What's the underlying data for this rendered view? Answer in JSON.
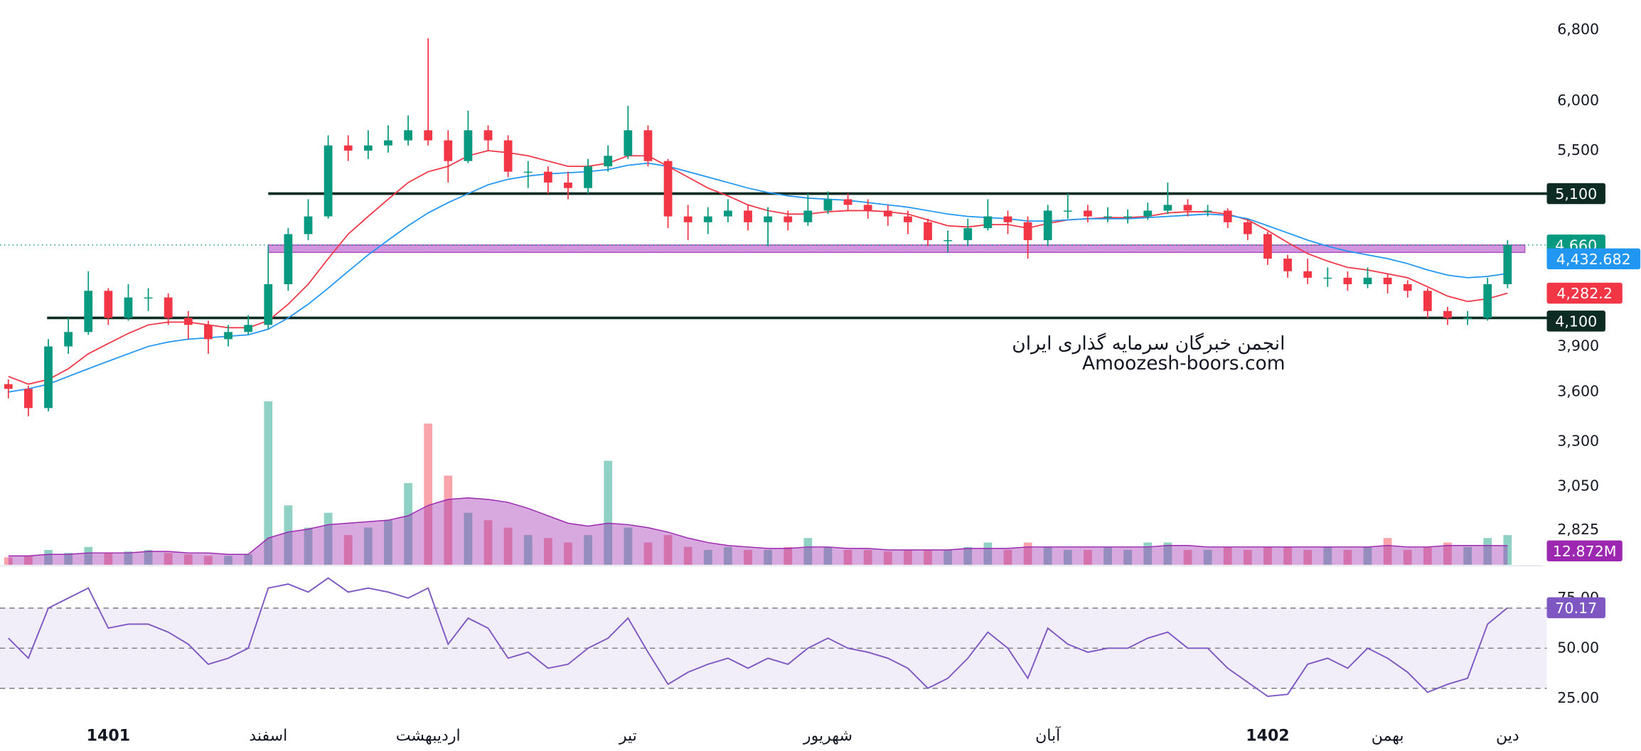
{
  "chart_data": {
    "type": "candlestick",
    "categories": [
      null,
      null,
      null,
      null,
      null,
      "1401",
      null,
      null,
      null,
      null,
      null,
      null,
      null,
      "اسفند",
      null,
      null,
      null,
      null,
      null,
      null,
      null,
      "اردیبهشت",
      null,
      null,
      null,
      null,
      null,
      null,
      null,
      null,
      null,
      "تیر",
      null,
      null,
      null,
      null,
      null,
      null,
      null,
      null,
      null,
      "شهریور",
      null,
      null,
      null,
      null,
      null,
      null,
      null,
      null,
      null,
      null,
      "آبان",
      null,
      null,
      null,
      null,
      null,
      null,
      null,
      null,
      null,
      null,
      "1402",
      null,
      null,
      null,
      null,
      null,
      "بهمن",
      null,
      null,
      null,
      null,
      null,
      "دین"
    ],
    "open": [
      3650,
      3620,
      3500,
      3900,
      4000,
      4300,
      4100,
      4250,
      4250,
      4100,
      4050,
      3950,
      4000,
      4050,
      4350,
      4750,
      4900,
      5550,
      5500,
      5550,
      5600,
      5700,
      5600,
      5400,
      5700,
      5600,
      5300,
      5300,
      5200,
      5150,
      5350,
      5450,
      5700,
      5400,
      4900,
      4850,
      4900,
      4950,
      4850,
      4900,
      4850,
      4950,
      5050,
      5000,
      4950,
      4900,
      4850,
      4700,
      4700,
      4800,
      4900,
      4850,
      4700,
      4950,
      4950,
      4900,
      4900,
      4900,
      4950,
      5000,
      4950,
      4950,
      4850,
      4750,
      4550,
      4450,
      4400,
      4400,
      4350,
      4400,
      4350,
      4300,
      4150,
      4100,
      4100,
      4350
    ],
    "high": [
      3680,
      3640,
      3950,
      4100,
      4450,
      4320,
      4350,
      4320,
      4280,
      4150,
      4080,
      4050,
      4120,
      4650,
      4800,
      5050,
      5650,
      5650,
      5700,
      5750,
      5850,
      6700,
      5700,
      5900,
      5750,
      5650,
      5400,
      5350,
      5300,
      5420,
      5550,
      5950,
      5750,
      5420,
      5000,
      4980,
      5050,
      5000,
      4980,
      4950,
      5100,
      5120,
      5100,
      5050,
      5000,
      4950,
      4880,
      4780,
      4880,
      5050,
      4950,
      4900,
      5000,
      5100,
      5000,
      4980,
      4960,
      5020,
      5200,
      5050,
      5000,
      4970,
      4870,
      4770,
      4580,
      4550,
      4480,
      4450,
      4480,
      4430,
      4380,
      4320,
      4180,
      4150,
      4400,
      4700
    ],
    "low": [
      3560,
      3450,
      3480,
      3850,
      3980,
      4050,
      4080,
      4150,
      4050,
      3950,
      3850,
      3900,
      3980,
      4020,
      4300,
      4700,
      4880,
      5400,
      5420,
      5480,
      5550,
      5550,
      5200,
      5380,
      5500,
      5250,
      5150,
      5100,
      5050,
      5100,
      5300,
      5420,
      5350,
      4800,
      4700,
      4750,
      4850,
      4780,
      4650,
      4780,
      4820,
      4920,
      4950,
      4880,
      4820,
      4750,
      4650,
      4600,
      4650,
      4780,
      4750,
      4550,
      4650,
      4880,
      4850,
      4850,
      4840,
      4870,
      4920,
      4900,
      4900,
      4800,
      4700,
      4500,
      4400,
      4350,
      4330,
      4300,
      4320,
      4280,
      4250,
      4100,
      4050,
      4050,
      4080,
      4320
    ],
    "close": [
      3620,
      3500,
      3900,
      4000,
      4300,
      4100,
      4250,
      4250,
      4100,
      4050,
      3950,
      4000,
      4050,
      4350,
      4750,
      4900,
      5550,
      5500,
      5550,
      5600,
      5700,
      5600,
      5400,
      5700,
      5600,
      5300,
      5300,
      5200,
      5150,
      5350,
      5450,
      5700,
      5400,
      4900,
      4850,
      4900,
      4950,
      4850,
      4900,
      4850,
      4950,
      5050,
      5000,
      4950,
      4900,
      4850,
      4700,
      4700,
      4800,
      4900,
      4850,
      4700,
      4950,
      4950,
      4900,
      4900,
      4900,
      4950,
      5000,
      4950,
      4950,
      4850,
      4750,
      4550,
      4450,
      4400,
      4400,
      4350,
      4400,
      4350,
      4300,
      4150,
      4100,
      4100,
      4350,
      4660
    ],
    "last_label": "4,660",
    "up_color": "#089981",
    "down_color": "#f23645",
    "log_scale": true,
    "ylim": [
      2658,
      7164
    ],
    "yticks": [
      {
        "value": 6800,
        "label": "6,800"
      },
      {
        "value": 6000,
        "label": "6,000"
      },
      {
        "value": 5500,
        "label": "5,500"
      },
      {
        "value": 3900,
        "label": "3,900"
      },
      {
        "value": 3600,
        "label": "3,600"
      },
      {
        "value": 3300,
        "label": "3,300"
      },
      {
        "value": 3050,
        "label": "3,050"
      },
      {
        "value": 2825,
        "label": "2,825"
      }
    ],
    "levels": [
      {
        "value": 5100,
        "label": "5,100"
      },
      {
        "value": 4100,
        "label": "4,100"
      }
    ],
    "level_color": "#0d2b22",
    "band": [
      4600,
      4660
    ],
    "band_color": "#c77dd6",
    "moving_averages": [
      {
        "color": "#f23645",
        "last_label": "4,282.2",
        "values": [
          3700,
          3650,
          3680,
          3750,
          3850,
          3920,
          3990,
          4050,
          4070,
          4070,
          4050,
          4030,
          4030,
          4080,
          4200,
          4350,
          4550,
          4750,
          4900,
          5050,
          5200,
          5300,
          5350,
          5450,
          5500,
          5480,
          5450,
          5400,
          5350,
          5350,
          5380,
          5450,
          5450,
          5350,
          5250,
          5150,
          5080,
          5000,
          4950,
          4920,
          4920,
          4940,
          4950,
          4950,
          4940,
          4920,
          4870,
          4820,
          4810,
          4830,
          4830,
          4800,
          4840,
          4870,
          4880,
          4890,
          4890,
          4900,
          4930,
          4940,
          4940,
          4920,
          4870,
          4780,
          4680,
          4590,
          4530,
          4480,
          4460,
          4430,
          4400,
          4330,
          4260,
          4220,
          4240,
          4282.2
        ]
      },
      {
        "color": "#2196f3",
        "last_label": "4,432.682",
        "values": [
          3600,
          3620,
          3650,
          3700,
          3750,
          3800,
          3850,
          3900,
          3930,
          3950,
          3960,
          3970,
          3980,
          4020,
          4100,
          4200,
          4320,
          4450,
          4580,
          4700,
          4820,
          4930,
          5020,
          5100,
          5180,
          5230,
          5260,
          5280,
          5290,
          5300,
          5320,
          5360,
          5380,
          5350,
          5300,
          5250,
          5200,
          5150,
          5110,
          5080,
          5060,
          5050,
          5040,
          5020,
          5000,
          4980,
          4950,
          4920,
          4900,
          4890,
          4880,
          4860,
          4860,
          4870,
          4880,
          4880,
          4880,
          4890,
          4900,
          4910,
          4920,
          4910,
          4880,
          4820,
          4760,
          4700,
          4650,
          4610,
          4580,
          4550,
          4510,
          4460,
          4420,
          4400,
          4410,
          4432.682
        ]
      }
    ],
    "volume": {
      "ylim": [
        0,
        380000000
      ],
      "values": [
        5000000,
        6000000,
        10000000,
        8000000,
        12000000,
        8000000,
        9000000,
        10000000,
        8000000,
        7000000,
        6000000,
        6000000,
        7000000,
        110000000,
        40000000,
        25000000,
        35000000,
        20000000,
        25000000,
        30000000,
        55000000,
        95000000,
        60000000,
        35000000,
        30000000,
        25000000,
        20000000,
        18000000,
        15000000,
        20000000,
        70000000,
        25000000,
        15000000,
        20000000,
        12000000,
        10000000,
        12000000,
        10000000,
        10000000,
        12000000,
        18000000,
        12000000,
        10000000,
        10000000,
        9000000,
        10000000,
        10000000,
        10000000,
        12000000,
        15000000,
        10000000,
        15000000,
        12000000,
        10000000,
        10000000,
        12000000,
        10000000,
        15000000,
        15000000,
        10000000,
        10000000,
        12000000,
        10000000,
        12000000,
        12000000,
        10000000,
        12000000,
        10000000,
        12000000,
        18000000,
        10000000,
        12000000,
        15000000,
        12000000,
        18000000,
        20000000
      ],
      "ma": {
        "color": "#9c27b0",
        "last_label": "12.872M",
        "values": [
          6000000,
          6000000,
          7000000,
          7000000,
          8000000,
          8000000,
          8000000,
          9000000,
          9000000,
          8000000,
          8000000,
          7000000,
          7000000,
          18000000,
          22000000,
          24000000,
          27000000,
          28000000,
          29000000,
          30000000,
          33000000,
          40000000,
          44000000,
          45000000,
          44000000,
          42000000,
          38000000,
          33000000,
          28000000,
          26000000,
          28000000,
          27000000,
          25000000,
          22000000,
          18000000,
          15000000,
          13000000,
          12000000,
          11000000,
          11000000,
          12000000,
          12000000,
          11000000,
          11000000,
          10000000,
          10000000,
          10000000,
          10000000,
          11000000,
          11000000,
          11000000,
          12000000,
          12000000,
          12000000,
          12000000,
          12000000,
          12000000,
          12000000,
          13000000,
          13000000,
          12000000,
          12000000,
          12000000,
          12000000,
          12000000,
          12000000,
          12000000,
          12000000,
          12000000,
          13000000,
          12000000,
          12000000,
          13000000,
          13000000,
          13000000,
          12872000
        ]
      }
    },
    "rsi": {
      "color": "#7e57c2",
      "last_label": "70.17",
      "ylim": [
        17,
        89
      ],
      "yticks": [
        {
          "value": 75,
          "label": "75.00"
        },
        {
          "value": 50,
          "label": "50.00"
        },
        {
          "value": 25,
          "label": "25.00"
        }
      ],
      "levels": [
        70,
        50,
        30
      ],
      "values": [
        55,
        45,
        70,
        75,
        80,
        60,
        62,
        62,
        58,
        52,
        42,
        45,
        50,
        80,
        82,
        78,
        85,
        78,
        80,
        78,
        75,
        80,
        52,
        65,
        60,
        45,
        48,
        40,
        42,
        50,
        55,
        65,
        48,
        32,
        38,
        42,
        45,
        40,
        45,
        42,
        50,
        55,
        50,
        48,
        45,
        40,
        30,
        35,
        45,
        58,
        50,
        35,
        60,
        52,
        48,
        50,
        50,
        55,
        58,
        50,
        50,
        40,
        33,
        26,
        27,
        42,
        45,
        40,
        50,
        45,
        38,
        28,
        32,
        35,
        62,
        70.17
      ]
    },
    "watermark": [
      "انجمن خبرگان سرمایه گذاری ایران",
      "Amoozesh-boors.com"
    ]
  }
}
